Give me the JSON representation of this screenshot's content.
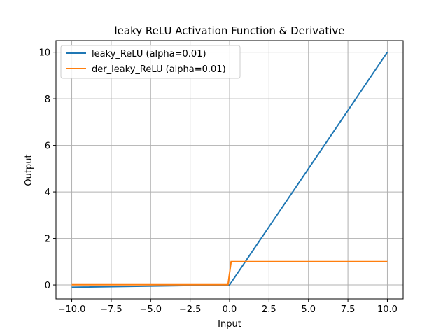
{
  "chart_data": {
    "type": "line",
    "title": "leaky ReLU Activation Function & Derivative",
    "xlabel": "Input",
    "ylabel": "Output",
    "xlim": [
      -11,
      11
    ],
    "ylim": [
      -0.6,
      10.5
    ],
    "grid": true,
    "legend_position": "top-left",
    "xticks": [
      -10.0,
      -7.5,
      -5.0,
      -2.5,
      0.0,
      2.5,
      5.0,
      7.5,
      10.0
    ],
    "xtick_labels": [
      "−10.0",
      "−7.5",
      "−5.0",
      "−2.5",
      "0.0",
      "2.5",
      "5.0",
      "7.5",
      "10.0"
    ],
    "yticks": [
      0,
      2,
      4,
      6,
      8,
      10
    ],
    "ytick_labels": [
      "0",
      "2",
      "4",
      "6",
      "8",
      "10"
    ],
    "series": [
      {
        "name": "leaky_ReLU (alpha=0.01)",
        "color": "#1f77b4",
        "x": [
          -10,
          0,
          10
        ],
        "y": [
          -0.1,
          0,
          10
        ]
      },
      {
        "name": "der_leaky_ReLU (alpha=0.01)",
        "color": "#ff7f0e",
        "x": [
          -10,
          -0.1,
          0.1,
          10
        ],
        "y": [
          0.01,
          0.01,
          1,
          1
        ]
      }
    ]
  }
}
